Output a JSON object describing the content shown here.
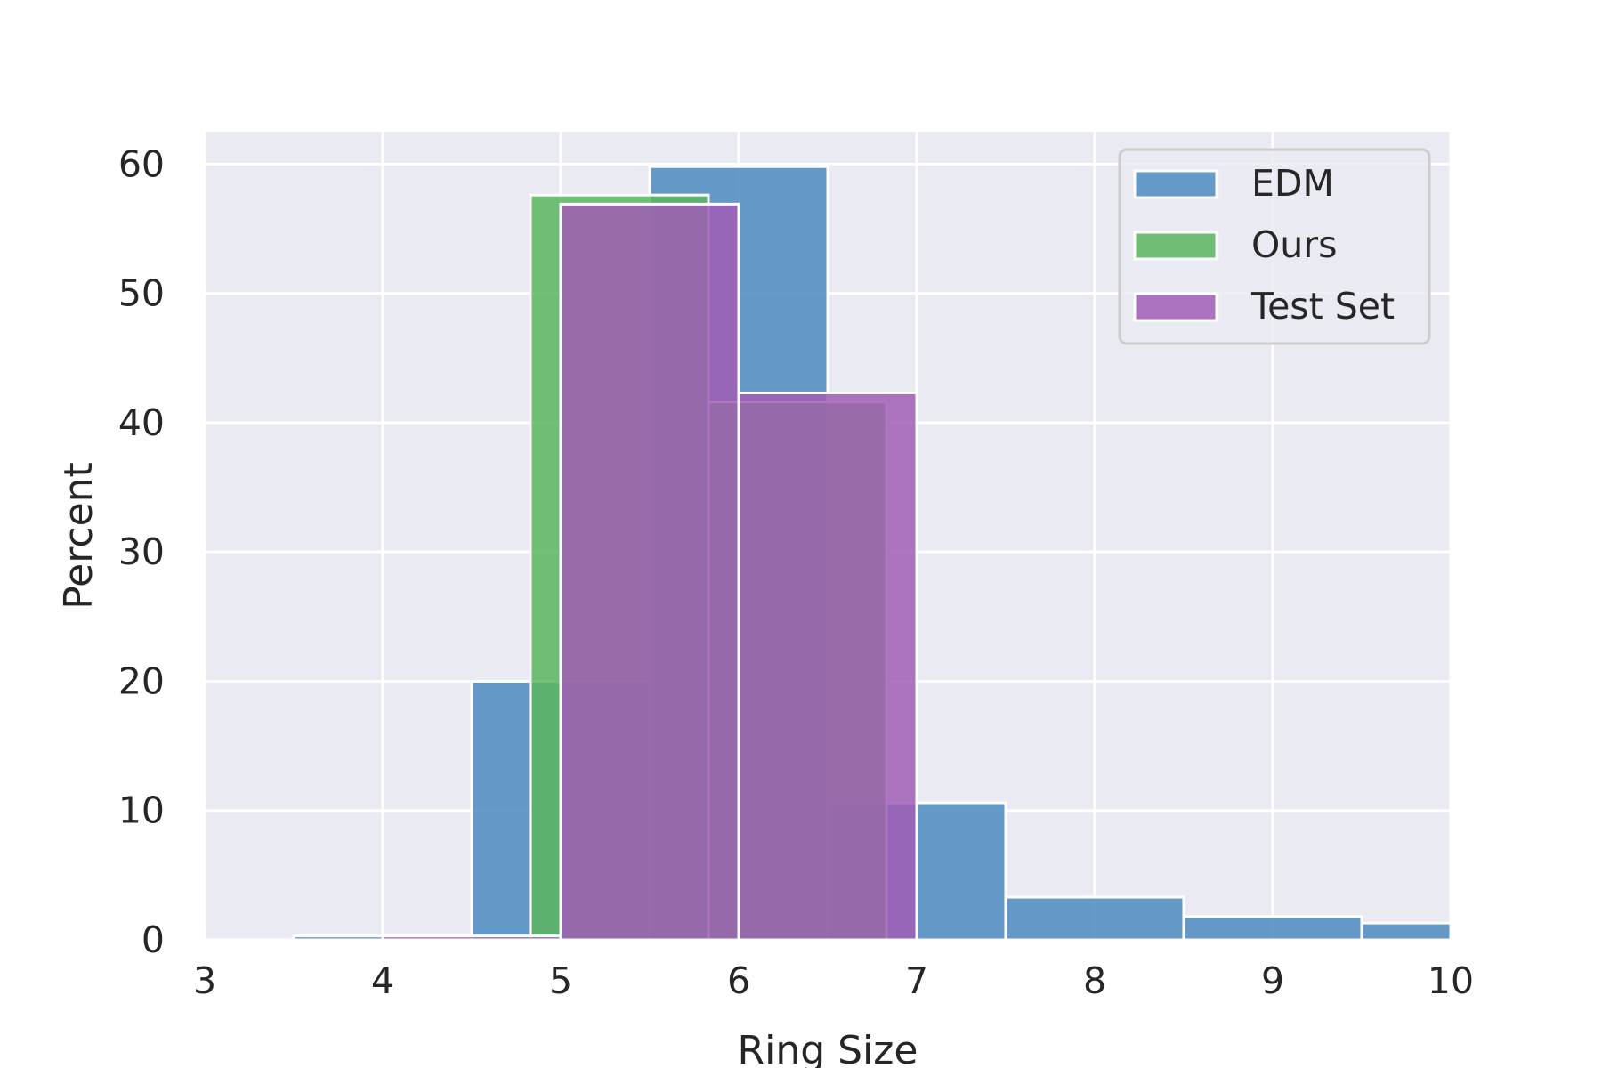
{
  "chart_data": {
    "type": "bar",
    "xlabel": "Ring Size",
    "ylabel": "Percent",
    "xlim": [
      3,
      10
    ],
    "ylim": [
      0,
      62.5
    ],
    "xticks": [
      "3",
      "4",
      "5",
      "6",
      "7",
      "8",
      "9",
      "10"
    ],
    "yticks": [
      "0",
      "10",
      "20",
      "30",
      "40",
      "50",
      "60"
    ],
    "grid": true,
    "legend_position": "top-right",
    "series": [
      {
        "name": "EDM",
        "color": "#4C8BC0",
        "bins": [
          {
            "x0": 3.5,
            "x1": 4.0,
            "value": 0.3
          },
          {
            "x0": 4.5,
            "x1": 5.5,
            "value": 20
          },
          {
            "x0": 5.5,
            "x1": 6.5,
            "value": 59.8
          },
          {
            "x0": 6.5,
            "x1": 7.5,
            "value": 10.6
          },
          {
            "x0": 7.5,
            "x1": 8.5,
            "value": 3.3
          },
          {
            "x0": 8.5,
            "x1": 9.5,
            "value": 1.8
          },
          {
            "x0": 9.5,
            "x1": 10.0,
            "value": 1.3
          }
        ]
      },
      {
        "name": "Ours",
        "color": "#5AB55F",
        "bins": [
          {
            "x0": 4.83,
            "x1": 5.83,
            "value": 57.6
          },
          {
            "x0": 5.83,
            "x1": 6.83,
            "value": 41.6
          }
        ]
      },
      {
        "name": "Test Set",
        "color": "#A05DB5",
        "bins": [
          {
            "x0": 4.0,
            "x1": 5.0,
            "value": 0.3
          },
          {
            "x0": 5.0,
            "x1": 6.0,
            "value": 56.9
          },
          {
            "x0": 6.0,
            "x1": 7.0,
            "value": 42.3
          }
        ]
      }
    ]
  }
}
